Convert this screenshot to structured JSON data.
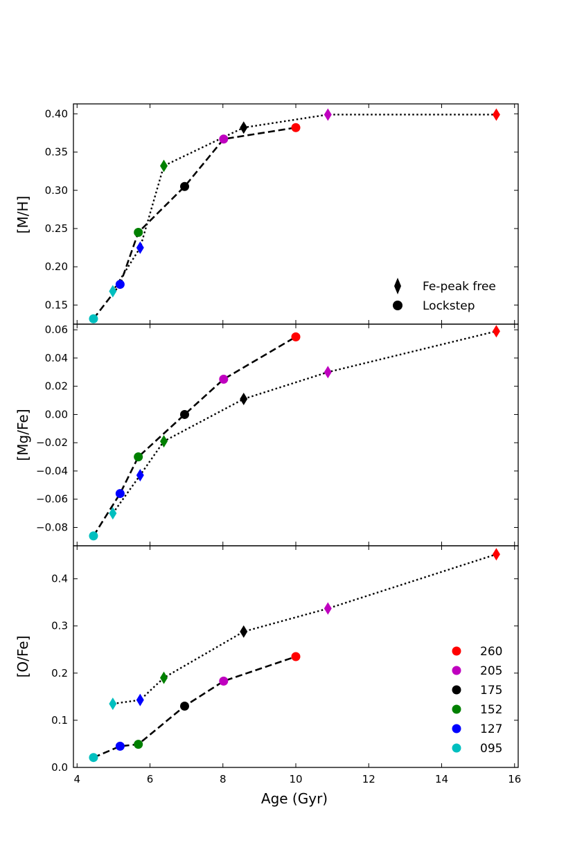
{
  "chart_data": {
    "type": "scatter",
    "x_axis": {
      "label": "Age (Gyr)",
      "range": [
        3.9,
        16.1
      ],
      "ticks": [
        4,
        6,
        8,
        10,
        12,
        14,
        16
      ],
      "tick_labels": [
        "4",
        "6",
        "8",
        "10",
        "12",
        "14",
        "16"
      ]
    },
    "colors": {
      "260": "#ff0000",
      "205": "#bf00bf",
      "175": "#000000",
      "152": "#008000",
      "127": "#0000ff",
      "095": "#00bfbf"
    },
    "panels": [
      {
        "id": "mh",
        "ylabel": "[M/H]",
        "ylim": [
          0.125,
          0.413
        ],
        "yticks": [
          0.15,
          0.2,
          0.25,
          0.3,
          0.35,
          0.4
        ],
        "ytick_labels": [
          "0.15",
          "0.20",
          "0.25",
          "0.30",
          "0.35",
          "0.40"
        ],
        "lockstep": {
          "x": [
            4.45,
            5.18,
            5.68,
            6.95,
            8.02,
            10.0
          ],
          "y": [
            0.132,
            0.177,
            0.245,
            0.305,
            0.367,
            0.382
          ],
          "groups": [
            "095",
            "127",
            "152",
            "175",
            "205",
            "260"
          ]
        },
        "fe_peak_free": {
          "x": [
            4.98,
            5.73,
            6.38,
            8.57,
            10.88,
            15.5
          ],
          "y": [
            0.168,
            0.225,
            0.332,
            0.382,
            0.399,
            0.399
          ],
          "groups": [
            "095",
            "127",
            "152",
            "175",
            "205",
            "260"
          ]
        }
      },
      {
        "id": "mgfe",
        "ylabel": "[Mg/Fe]",
        "ylim": [
          -0.093,
          0.064
        ],
        "yticks": [
          -0.08,
          -0.06,
          -0.04,
          -0.02,
          0.0,
          0.02,
          0.04,
          0.06
        ],
        "ytick_labels": [
          "−0.08",
          "−0.06",
          "−0.04",
          "−0.02",
          "0.00",
          "0.02",
          "0.04",
          "0.06"
        ],
        "lockstep": {
          "x": [
            4.45,
            5.18,
            5.68,
            6.95,
            8.02,
            10.0
          ],
          "y": [
            -0.086,
            -0.056,
            -0.03,
            0.0,
            0.025,
            0.055
          ],
          "groups": [
            "095",
            "127",
            "152",
            "175",
            "205",
            "260"
          ]
        },
        "fe_peak_free": {
          "x": [
            4.98,
            5.73,
            6.38,
            8.57,
            10.88,
            15.5
          ],
          "y": [
            -0.07,
            -0.043,
            -0.019,
            0.011,
            0.03,
            0.059
          ],
          "groups": [
            "095",
            "127",
            "152",
            "175",
            "205",
            "260"
          ]
        }
      },
      {
        "id": "ofe",
        "ylabel": "[O/Fe]",
        "ylim": [
          0.0,
          0.47
        ],
        "yticks": [
          0.0,
          0.1,
          0.2,
          0.3,
          0.4
        ],
        "ytick_labels": [
          "0.0",
          "0.1",
          "0.2",
          "0.3",
          "0.4"
        ],
        "lockstep": {
          "x": [
            4.45,
            5.18,
            5.68,
            6.95,
            8.02,
            10.0
          ],
          "y": [
            0.021,
            0.045,
            0.049,
            0.13,
            0.183,
            0.235
          ],
          "groups": [
            "095",
            "127",
            "152",
            "175",
            "205",
            "260"
          ]
        },
        "fe_peak_free": {
          "x": [
            4.98,
            5.73,
            6.38,
            8.57,
            10.88,
            15.5
          ],
          "y": [
            0.135,
            0.143,
            0.19,
            0.288,
            0.337,
            0.452
          ],
          "groups": [
            "095",
            "127",
            "152",
            "175",
            "205",
            "260"
          ]
        }
      }
    ],
    "legend_style": {
      "location": "lower-right of top panel",
      "entries": [
        {
          "marker": "diamond",
          "label": "Fe-peak free"
        },
        {
          "marker": "circle",
          "label": "Lockstep"
        }
      ]
    },
    "legend_groups": {
      "location": "lower-right of bottom panel",
      "entries": [
        "260",
        "205",
        "175",
        "152",
        "127",
        "095"
      ]
    }
  }
}
